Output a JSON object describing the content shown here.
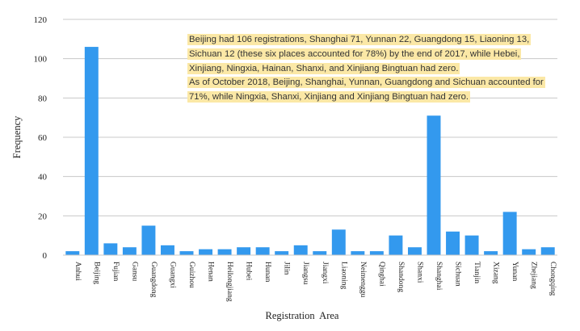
{
  "chart_data": {
    "type": "bar",
    "xlabel": "Registration  Area",
    "ylabel": "Frequency",
    "ylim": [
      0,
      120
    ],
    "yticks": [
      0,
      20,
      40,
      60,
      80,
      100,
      120
    ],
    "grid": true,
    "bar_color": "#3399ee",
    "categories": [
      "Anhui",
      "Beijing",
      "Fujian",
      "Gansu",
      "Guangdong",
      "Guangxi",
      "Guizhou",
      "Henan",
      "Heilongjiang",
      "Hubei",
      "Hunan",
      "Jilin",
      "Jiangsu",
      "Jiangxi",
      "Liaoning",
      "Neimenggu",
      "Qinghai",
      "Shandong",
      "Shanxi",
      "Shanghai",
      "Sichuan",
      "Tianjin",
      "Xizang",
      "Yunan",
      "Zhejiang",
      "Chongqing"
    ],
    "values": [
      2,
      106,
      6,
      4,
      15,
      5,
      2,
      3,
      3,
      4,
      4,
      2,
      5,
      2,
      13,
      2,
      2,
      10,
      4,
      71,
      12,
      10,
      2,
      22,
      3,
      4
    ]
  },
  "annotation": {
    "lines": [
      "Beijing had 106 registrations, Shanghai 71, Yunnan 22, Guangdong 15, Liaoning 13,",
      "Sichuan 12 (these six places accounted for 78%) by the end of 2017, while Hebei,",
      "Xinjiang, Ningxia, Hainan, Shanxi, and Xinjiang Bingtuan had zero.",
      "As of October 2018, Beijing, Shanghai, Yunnan, Guangdong and Sichuan accounted for",
      "71%, while Ningxia, Shanxi, Xinjiang and Xinjiang Bingtuan had zero."
    ],
    "highlight_color": "#fbe8a6"
  }
}
